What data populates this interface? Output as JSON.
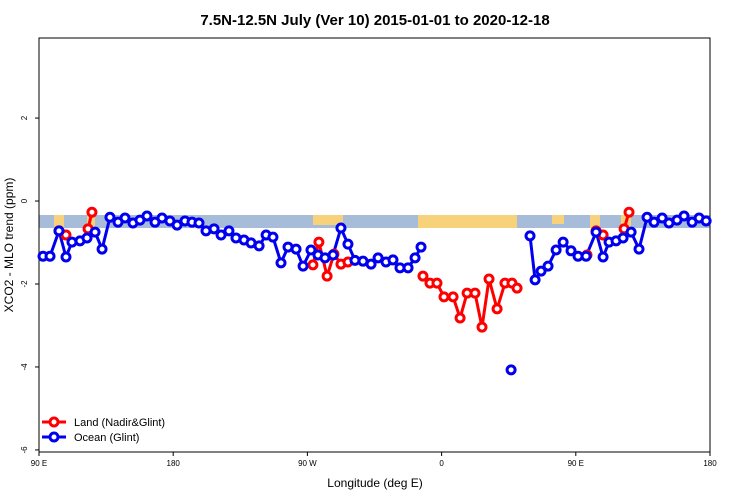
{
  "chart_data": {
    "type": "line",
    "title": "7.5N-12.5N July (Ver 10)   2015-01-01 to 2020-12-18",
    "x_label": "Longitude (deg E)",
    "y_label": "XCO2 - MLO trend (ppm)",
    "xlim": [
      90,
      540
    ],
    "xticks": [
      {
        "value": 90,
        "label": "90 E"
      },
      180,
      {
        "value": 270,
        "label": "90 W"
      },
      {
        "value": 360,
        "label": "0"
      },
      {
        "value": 450,
        "label": "90 E"
      },
      {
        "value": 540,
        "label": "180"
      }
    ],
    "ylim": [
      -6.05,
      3.93
    ],
    "yticks": [
      2,
      0,
      -2,
      -4,
      -6
    ],
    "legend": "bottom-left",
    "series": [
      {
        "name": "Land (Nadir&Glint)",
        "color": "#ff0000",
        "x": [
          103.4,
          108.1,
          null,
          122.9,
          125.5,
          null,
          273.7,
          277.7,
          283.2,
          287.8,
          292.5,
          297.2,
          null,
          347.5,
          352.2,
          356.9,
          361.6,
          367.7,
          372.4,
          377.1,
          382.4,
          387.1,
          391.8,
          397.2,
          402.5,
          407.2,
          410.6,
          null,
          457.5,
          null,
          463.6,
          468.3,
          null,
          482.4,
          485.7
        ],
        "values": [
          -0.72,
          -0.82,
          null,
          -0.67,
          -0.27,
          null,
          -1.54,
          -0.99,
          -1.81,
          -1.28,
          -1.52,
          -1.47,
          null,
          -1.81,
          -1.98,
          -1.98,
          -2.31,
          -2.31,
          -2.82,
          -2.22,
          -2.22,
          -3.04,
          -1.88,
          -2.6,
          -1.98,
          -1.98,
          -2.1,
          null,
          -1.3,
          null,
          -0.72,
          -0.82,
          null,
          -0.67,
          -0.27
        ]
      },
      {
        "name": "Ocean (Glint)",
        "color": "#0000ee",
        "x": [
          92.7,
          97.4,
          103.4,
          108.1,
          112.1,
          117.5,
          122.2,
          127.6,
          132.3,
          137.6,
          143.0,
          147.7,
          153.0,
          157.7,
          162.4,
          167.8,
          172.5,
          177.8,
          182.6,
          187.9,
          192.6,
          197.3,
          202.0,
          207.4,
          212.1,
          217.4,
          222.1,
          227.5,
          232.2,
          237.6,
          242.3,
          246.9,
          252.3,
          257.0,
          262.4,
          267.1,
          272.4,
          277.1,
          281.8,
          287.2,
          292.5,
          297.2,
          301.9,
          307.3,
          312.7,
          317.4,
          322.7,
          327.4,
          332.1,
          337.5,
          342.2,
          346.2,
          null,
          406.6,
          null,
          419.3,
          422.7,
          426.7,
          431.4,
          436.8,
          441.5,
          446.8,
          451.5,
          456.9,
          463.6,
          468.3,
          472.3,
          477.0,
          481.7,
          487.1,
          492.4,
          497.8,
          502.5,
          507.9,
          512.5,
          517.9,
          522.6,
          528.0,
          532.7,
          537.4
        ],
        "values": [
          -1.33,
          -1.33,
          -0.72,
          -1.35,
          -0.99,
          -0.96,
          -0.89,
          -0.75,
          -1.16,
          -0.39,
          -0.51,
          -0.41,
          -0.53,
          -0.46,
          -0.36,
          -0.51,
          -0.41,
          -0.48,
          -0.58,
          -0.48,
          -0.51,
          -0.53,
          -0.72,
          -0.67,
          -0.82,
          -0.72,
          -0.89,
          -0.94,
          -1.01,
          -1.08,
          -0.82,
          -0.87,
          -1.49,
          -1.11,
          -1.16,
          -1.57,
          -1.18,
          -1.3,
          -1.37,
          -1.3,
          -0.65,
          -1.04,
          -1.43,
          -1.45,
          -1.52,
          -1.37,
          -1.47,
          -1.42,
          -1.61,
          -1.61,
          -1.37,
          -1.11,
          null,
          -4.07,
          null,
          -0.84,
          -1.9,
          -1.69,
          -1.57,
          -1.18,
          -0.99,
          -1.2,
          -1.33,
          -1.33,
          -0.75,
          -1.35,
          -0.99,
          -0.96,
          -0.89,
          -0.75,
          -1.16,
          -0.39,
          -0.51,
          -0.41,
          -0.53,
          -0.46,
          -0.36,
          -0.51,
          -0.41,
          -0.48
        ]
      }
    ]
  }
}
